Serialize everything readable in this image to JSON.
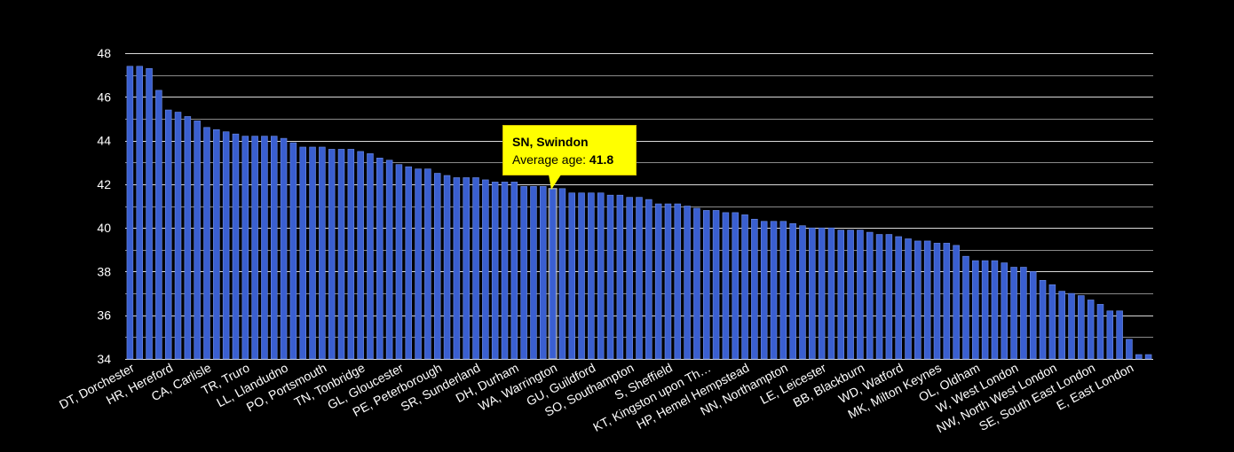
{
  "chart_data": {
    "type": "bar",
    "title": "",
    "xlabel": "",
    "ylabel": "",
    "ylim": [
      34,
      48
    ],
    "yticks": [
      34,
      36,
      38,
      40,
      42,
      44,
      46,
      48
    ],
    "grid": true,
    "colors": {
      "background": "#000000",
      "bar": "#3a5fd0",
      "bar_edge": "#6f8fe8",
      "grid": "#d9d9d9",
      "text": "#ffffff",
      "highlight": "#ffff00"
    },
    "tick_labels": [
      "DT, Dorchester",
      "HR, Hereford",
      "CA, Carlisle",
      "TR, Truro",
      "LL, Llandudno",
      "PO, Portsmouth",
      "TN, Tonbridge",
      "GL, Gloucester",
      "PE, Peterborough",
      "SR, Sunderland",
      "DH, Durham",
      "WA, Warrington",
      "GU, Guildford",
      "SO, Southampton",
      "S, Sheffield",
      "KT, Kingston upon Th…",
      "HP, Hemel Hempstead",
      "NN, Northampton",
      "LE, Leicester",
      "BB, Blackburn",
      "WD, Watford",
      "MK, Milton Keynes",
      "OL, Oldham",
      "W, West London",
      "NW, North West London",
      "SE, South East London",
      "E, East London"
    ],
    "tick_positions": [
      0,
      4,
      8,
      12,
      16,
      20,
      24,
      28,
      32,
      36,
      40,
      44,
      48,
      52,
      56,
      60,
      64,
      68,
      72,
      76,
      80,
      84,
      88,
      92,
      96,
      100,
      104
    ],
    "values": [
      47.4,
      47.4,
      47.3,
      46.3,
      45.4,
      45.3,
      45.1,
      44.9,
      44.6,
      44.5,
      44.4,
      44.3,
      44.2,
      44.2,
      44.2,
      44.2,
      44.1,
      43.9,
      43.7,
      43.7,
      43.7,
      43.6,
      43.6,
      43.6,
      43.5,
      43.4,
      43.2,
      43.1,
      42.9,
      42.8,
      42.7,
      42.7,
      42.5,
      42.4,
      42.3,
      42.3,
      42.3,
      42.2,
      42.1,
      42.1,
      42.1,
      41.9,
      41.9,
      41.9,
      41.8,
      41.8,
      41.6,
      41.6,
      41.6,
      41.6,
      41.5,
      41.5,
      41.4,
      41.4,
      41.3,
      41.1,
      41.1,
      41.1,
      41.0,
      40.9,
      40.8,
      40.8,
      40.7,
      40.7,
      40.6,
      40.4,
      40.3,
      40.3,
      40.3,
      40.2,
      40.1,
      40.0,
      40.0,
      40.0,
      39.9,
      39.9,
      39.9,
      39.8,
      39.7,
      39.7,
      39.6,
      39.5,
      39.4,
      39.4,
      39.3,
      39.3,
      39.2,
      38.7,
      38.5,
      38.5,
      38.5,
      38.4,
      38.2,
      38.2,
      38.0,
      37.6,
      37.4,
      37.1,
      37.0,
      36.9,
      36.7,
      36.5,
      36.2,
      36.2,
      34.9,
      34.2,
      34.2
    ],
    "highlight_index": 44,
    "annotation": {
      "title": "SN, Swindon",
      "label": "Average age:",
      "value": "41.8"
    }
  }
}
